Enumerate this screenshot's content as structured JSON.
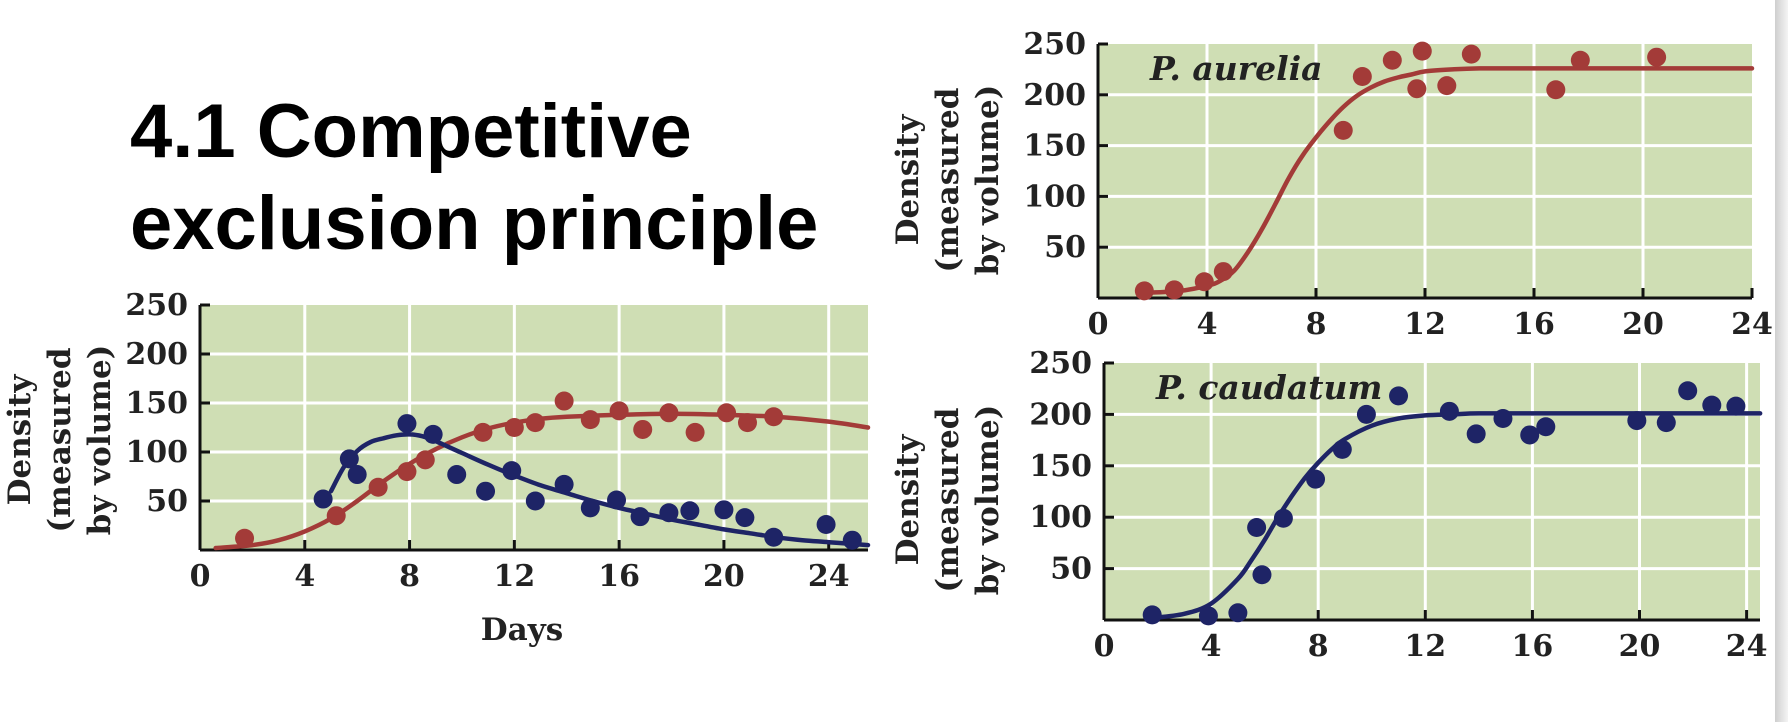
{
  "slide": {
    "title_lines": [
      "4.1 Competitive",
      "exclusion principle"
    ]
  },
  "colors": {
    "plot_background": "#cfdeb4",
    "grid": "#ffffff",
    "aurelia": "#a33b38",
    "caudatum": "#1e2466",
    "text": "#222222"
  },
  "chart_data": [
    {
      "id": "mixed",
      "type": "scatter",
      "title": "",
      "xlabel": "Days",
      "ylabel_lines": [
        "Density",
        "(measured",
        "by volume)"
      ],
      "xlim": [
        0,
        25.5
      ],
      "ylim": [
        0,
        250
      ],
      "x_ticks": [
        0,
        4,
        8,
        12,
        16,
        20,
        24
      ],
      "y_ticks": [
        50,
        100,
        150,
        200,
        250
      ],
      "grid": true,
      "series": [
        {
          "color": "#a33b38",
          "points": [
            [
              1.7,
              12
            ],
            [
              5.2,
              35
            ],
            [
              6.8,
              64
            ],
            [
              7.9,
              80
            ],
            [
              8.6,
              92
            ],
            [
              10.8,
              120
            ],
            [
              12.0,
              125
            ],
            [
              12.8,
              130
            ],
            [
              13.9,
              152
            ],
            [
              14.9,
              133
            ],
            [
              16.0,
              142
            ],
            [
              16.9,
              123
            ],
            [
              17.9,
              140
            ],
            [
              18.9,
              120
            ],
            [
              20.1,
              140
            ],
            [
              20.9,
              130
            ],
            [
              21.9,
              136
            ]
          ],
          "curve": [
            [
              0.6,
              2
            ],
            [
              2,
              5
            ],
            [
              3,
              10
            ],
            [
              4,
              19
            ],
            [
              5,
              32
            ],
            [
              6,
              50
            ],
            [
              7,
              70
            ],
            [
              8,
              88
            ],
            [
              9,
              103
            ],
            [
              10,
              115
            ],
            [
              11,
              124
            ],
            [
              12,
              130
            ],
            [
              13,
              134
            ],
            [
              14,
              136
            ],
            [
              16,
              138
            ],
            [
              18,
              139
            ],
            [
              20,
              138
            ],
            [
              22,
              136
            ],
            [
              24,
              131
            ],
            [
              25.5,
              125
            ]
          ]
        },
        {
          "color": "#1e2466",
          "points": [
            [
              4.7,
              52
            ],
            [
              5.7,
              93
            ],
            [
              6.0,
              77
            ],
            [
              7.9,
              129
            ],
            [
              8.9,
              118
            ],
            [
              9.8,
              77
            ],
            [
              10.9,
              60
            ],
            [
              11.9,
              81
            ],
            [
              12.8,
              50
            ],
            [
              13.9,
              67
            ],
            [
              14.9,
              43
            ],
            [
              15.9,
              51
            ],
            [
              16.8,
              34
            ],
            [
              17.9,
              38
            ],
            [
              18.7,
              40
            ],
            [
              20.0,
              41
            ],
            [
              20.8,
              33
            ],
            [
              21.9,
              13
            ],
            [
              23.9,
              26
            ],
            [
              24.9,
              10
            ]
          ],
          "curve": [
            [
              5.0,
              60
            ],
            [
              5.5,
              85
            ],
            [
              6,
              101
            ],
            [
              6.5,
              110
            ],
            [
              7,
              114
            ],
            [
              7.5,
              117
            ],
            [
              8,
              118
            ],
            [
              8.5,
              116
            ],
            [
              9,
              111
            ],
            [
              10,
              99
            ],
            [
              11,
              87
            ],
            [
              12,
              76
            ],
            [
              13,
              66
            ],
            [
              14,
              58
            ],
            [
              15,
              50
            ],
            [
              16,
              43
            ],
            [
              17,
              37
            ],
            [
              18,
              31
            ],
            [
              19,
              26
            ],
            [
              20,
              21
            ],
            [
              21,
              17
            ],
            [
              22,
              13
            ],
            [
              23,
              10
            ],
            [
              24,
              8
            ],
            [
              25,
              6
            ],
            [
              25.5,
              5
            ]
          ]
        }
      ]
    },
    {
      "id": "aurelia",
      "type": "scatter",
      "title": "P. aurelia",
      "xlabel": "",
      "ylabel_lines": [
        "Density",
        "(measured",
        "by volume)"
      ],
      "xlim": [
        0,
        24
      ],
      "ylim": [
        0,
        250
      ],
      "x_ticks": [
        0,
        4,
        8,
        12,
        16,
        20,
        24
      ],
      "y_ticks": [
        50,
        100,
        150,
        200,
        250
      ],
      "grid": true,
      "series": [
        {
          "color": "#a33b38",
          "points": [
            [
              1.7,
              7
            ],
            [
              2.8,
              8
            ],
            [
              3.9,
              16
            ],
            [
              4.6,
              26
            ],
            [
              9.0,
              165
            ],
            [
              9.7,
              218
            ],
            [
              10.8,
              234
            ],
            [
              11.7,
              206
            ],
            [
              11.9,
              243
            ],
            [
              12.8,
              209
            ],
            [
              13.7,
              240
            ],
            [
              16.8,
              205
            ],
            [
              17.7,
              234
            ],
            [
              20.5,
              237
            ]
          ],
          "curve": [
            [
              1.7,
              5
            ],
            [
              3,
              7
            ],
            [
              4,
              12
            ],
            [
              4.5,
              17
            ],
            [
              5,
              27
            ],
            [
              5.5,
              45
            ],
            [
              6,
              67
            ],
            [
              6.5,
              92
            ],
            [
              7,
              118
            ],
            [
              7.5,
              140
            ],
            [
              8,
              158
            ],
            [
              8.5,
              174
            ],
            [
              9,
              188
            ],
            [
              9.5,
              199
            ],
            [
              10,
              207
            ],
            [
              10.5,
              213
            ],
            [
              11,
              217
            ],
            [
              11.5,
              220
            ],
            [
              12,
              223
            ],
            [
              13,
              225
            ],
            [
              14,
              226
            ],
            [
              16,
              226
            ],
            [
              20,
              226
            ],
            [
              24,
              226
            ]
          ]
        }
      ]
    },
    {
      "id": "caudatum",
      "type": "scatter",
      "title": "P. caudatum",
      "xlabel": "",
      "ylabel_lines": [
        "Density",
        "(measured",
        "by volume)"
      ],
      "xlim": [
        0,
        24.5
      ],
      "ylim": [
        0,
        250
      ],
      "x_ticks": [
        0,
        4,
        8,
        12,
        16,
        20,
        24
      ],
      "y_ticks": [
        50,
        100,
        150,
        200,
        250
      ],
      "grid": true,
      "series": [
        {
          "color": "#1e2466",
          "points": [
            [
              1.8,
              5
            ],
            [
              3.9,
              4
            ],
            [
              5.0,
              7
            ],
            [
              5.7,
              90
            ],
            [
              5.9,
              44
            ],
            [
              6.7,
              99
            ],
            [
              7.9,
              137
            ],
            [
              8.9,
              166
            ],
            [
              9.8,
              200
            ],
            [
              11.0,
              218
            ],
            [
              12.9,
              203
            ],
            [
              13.9,
              181
            ],
            [
              14.9,
              196
            ],
            [
              15.9,
              180
            ],
            [
              16.5,
              188
            ],
            [
              19.9,
              194
            ],
            [
              21.0,
              192
            ],
            [
              21.8,
              223
            ],
            [
              22.7,
              209
            ],
            [
              23.6,
              208
            ]
          ],
          "curve": [
            [
              1.8,
              2
            ],
            [
              3,
              6
            ],
            [
              4,
              16
            ],
            [
              5,
              40
            ],
            [
              5.5,
              58
            ],
            [
              6,
              78
            ],
            [
              6.5,
              100
            ],
            [
              7,
              120
            ],
            [
              7.5,
              138
            ],
            [
              8,
              153
            ],
            [
              8.5,
              166
            ],
            [
              9,
              176
            ],
            [
              10,
              189
            ],
            [
              11,
              196
            ],
            [
              12,
              199
            ],
            [
              13,
              200
            ],
            [
              14,
              201
            ],
            [
              16,
              201
            ],
            [
              20,
              201
            ],
            [
              24,
              201
            ],
            [
              24.5,
              201
            ]
          ]
        }
      ]
    }
  ]
}
